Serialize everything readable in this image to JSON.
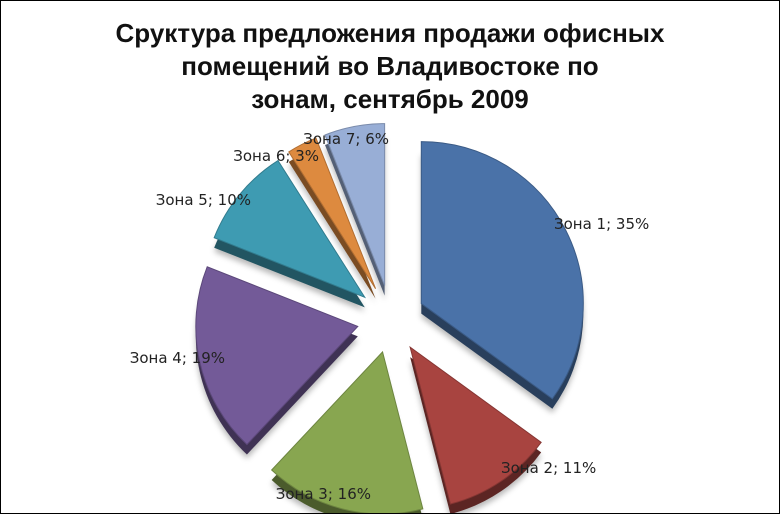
{
  "chart_data": {
    "type": "pie",
    "title_lines": [
      "Сруктура предложения продажи офисных",
      "помещений во Владивостоке по",
      "зонам, сентябрь 2009"
    ],
    "slices": [
      {
        "name": "Зона 1",
        "value": 35,
        "label": "Зона 1; 35%",
        "color": "#4a72a8"
      },
      {
        "name": "Зона 2",
        "value": 11,
        "label": "Зона 2; 11%",
        "color": "#a84440"
      },
      {
        "name": "Зона 3",
        "value": 16,
        "label": "Зона 3; 16%",
        "color": "#88a650"
      },
      {
        "name": "Зона 4",
        "value": 19,
        "label": "Зона 4; 19%",
        "color": "#735a98"
      },
      {
        "name": "Зона 5",
        "value": 10,
        "label": "Зона 5; 10%",
        "color": "#3e9bb2"
      },
      {
        "name": "Зона 6",
        "value": 3,
        "label": "Зона 6; 3%",
        "color": "#dd8a3f"
      },
      {
        "name": "Зона 7",
        "value": 6,
        "label": "Зона 7; 6%",
        "color": "#98aed6"
      }
    ],
    "exploded": true,
    "legend": "none"
  }
}
